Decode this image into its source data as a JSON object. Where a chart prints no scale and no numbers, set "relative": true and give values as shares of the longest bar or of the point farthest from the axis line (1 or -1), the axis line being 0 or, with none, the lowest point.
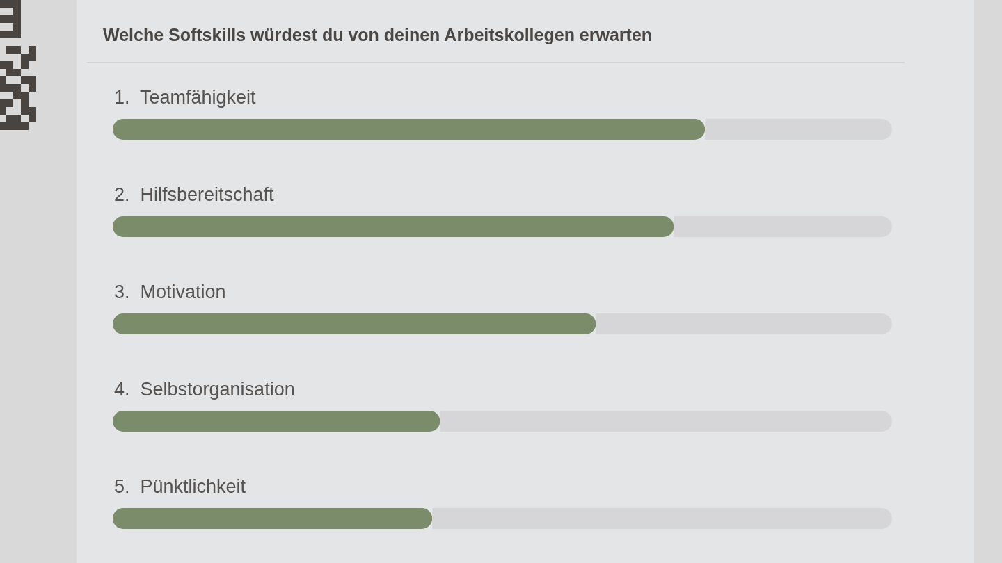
{
  "chart_data": {
    "type": "bar",
    "orientation": "horizontal",
    "stacked": true,
    "relative": true,
    "title": "Welche Softskills würdest du von deinen Arbeitskollegen erwarten",
    "categories": [
      "1.  Teamfähigkeit",
      "2.  Hilfsbereitschaft",
      "3.  Motivation",
      "4.  Selbstorganisation",
      "5.  Pünktlichkeit"
    ],
    "series": [
      {
        "color": "#7b8c6b",
        "values": [
          0.76,
          0.72,
          0.62,
          0.42,
          0.41
        ]
      },
      {
        "color": "#d6d6d9",
        "values": [
          0.24,
          0.28,
          0.38,
          0.58,
          0.59
        ]
      }
    ]
  }
}
